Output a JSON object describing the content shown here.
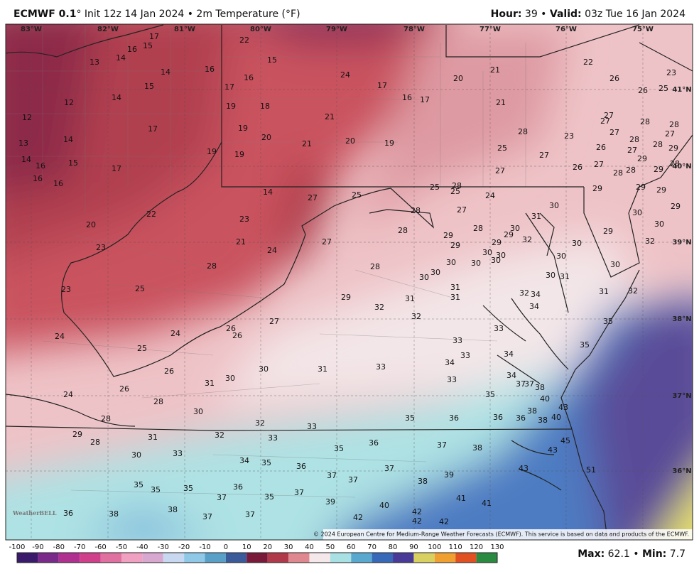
{
  "header": {
    "model": "ECMWF 0.1",
    "title": "° Init 12z 14 Jan 2024 • 2m Temperature (°F)",
    "hour_key": "Hour:",
    "hour": " 39 • ",
    "valid_key": "Valid:",
    "valid": " 03z Tue 16 Jan 2024"
  },
  "longitudes": [
    "83°W",
    "82°W",
    "81°W",
    "80°W",
    "79°W",
    "78°W",
    "77°W",
    "76°W",
    "75°W"
  ],
  "latitudes": [
    "41°N",
    "40°N",
    "39°N",
    "38°N",
    "37°N",
    "36°N"
  ],
  "temperature_labels": [
    17,
    15,
    16,
    14,
    13,
    14,
    16,
    15,
    14,
    12,
    12,
    17,
    13,
    14,
    14,
    15,
    16,
    17,
    16,
    16,
    19,
    20,
    22,
    23,
    23,
    24,
    25,
    24,
    25,
    26,
    26,
    24,
    28,
    28,
    29,
    28,
    31,
    30,
    33,
    35,
    35,
    35,
    36,
    38,
    38,
    37,
    37,
    36,
    37,
    35,
    37,
    34,
    35,
    36,
    37,
    37,
    39,
    42,
    40,
    42,
    42,
    42,
    41,
    41,
    38,
    39,
    37,
    35,
    36,
    37,
    38,
    33,
    32,
    33,
    32,
    35,
    36,
    36,
    36,
    38,
    38,
    40,
    40,
    43,
    45,
    43,
    43,
    51,
    35,
    30,
    31,
    30,
    30,
    31,
    33,
    33,
    34,
    33,
    33,
    34,
    34,
    37,
    37,
    38,
    33,
    35,
    35,
    26,
    26,
    27,
    29,
    32,
    31,
    32,
    31,
    31,
    30,
    30,
    30,
    30,
    30,
    30,
    30,
    29,
    29,
    29,
    28,
    28,
    28,
    27,
    27,
    28,
    29,
    30,
    32,
    31,
    30,
    30,
    30,
    30,
    31,
    32,
    34,
    34,
    30,
    31,
    32,
    29,
    32,
    30,
    30,
    29,
    29,
    29,
    29,
    28,
    29,
    28,
    28,
    29,
    29,
    28,
    27,
    28,
    26,
    27,
    27,
    27,
    28,
    28,
    27,
    27,
    26,
    27,
    27,
    25,
    28,
    23,
    22,
    26,
    26,
    25,
    23,
    21,
    21,
    20,
    17,
    16,
    17,
    24,
    19,
    20,
    21,
    21,
    20,
    19,
    19,
    19,
    18,
    17,
    16,
    15,
    22,
    14,
    27,
    25,
    28,
    25,
    25,
    24,
    23,
    21,
    24,
    28
  ],
  "watermark": "WeatherBELL",
  "copyright": "© 2024 European Centre for Medium-Range Weather Forecasts (ECMWF). This service is based on data and products of the ECMWF.",
  "colorbar": {
    "ticks": [
      -100,
      -90,
      -80,
      -70,
      -60,
      -50,
      -40,
      -30,
      -20,
      -10,
      0,
      10,
      20,
      30,
      40,
      50,
      60,
      70,
      80,
      90,
      100,
      110,
      120,
      130
    ]
  },
  "footer": {
    "max_key": "Max:",
    "max": " 62.1 • ",
    "min_key": "Min:",
    "min": " 7.7"
  }
}
